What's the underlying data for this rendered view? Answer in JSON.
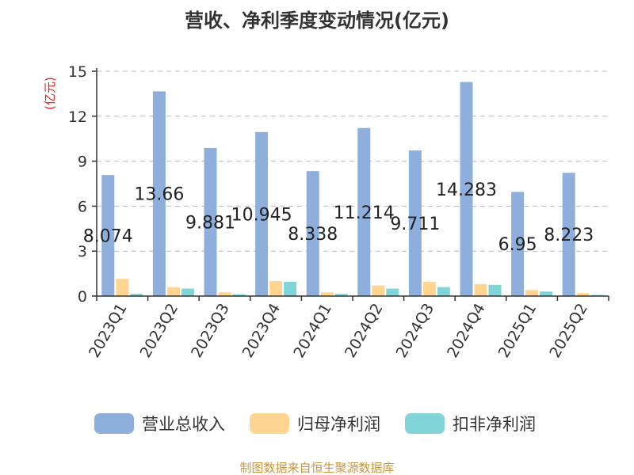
{
  "chart_data": {
    "type": "bar",
    "title": "营收、净利季度变动情况(亿元)",
    "ylabel": "(亿元)",
    "ylim": [
      0,
      15
    ],
    "yticks": [
      0,
      3,
      6,
      9,
      12,
      15
    ],
    "grid": true,
    "legend_position": "bottom",
    "categories": [
      "2023Q1",
      "2023Q2",
      "2023Q3",
      "2023Q4",
      "2024Q1",
      "2024Q2",
      "2024Q3",
      "2024Q4",
      "2025Q1",
      "2025Q2"
    ],
    "series": [
      {
        "name": "营业总收入",
        "color": "#8EAEDB",
        "show_labels": true,
        "values": [
          8.074,
          13.66,
          9.881,
          10.945,
          8.338,
          11.214,
          9.711,
          14.283,
          6.95,
          8.223
        ]
      },
      {
        "name": "归母净利润",
        "color": "#FFD591",
        "show_labels": false,
        "values": [
          1.15,
          0.6,
          0.25,
          1.0,
          0.25,
          0.7,
          0.95,
          0.8,
          0.4,
          0.2
        ]
      },
      {
        "name": "扣非净利润",
        "color": "#82D5D6",
        "show_labels": false,
        "values": [
          0.15,
          0.5,
          0.12,
          0.95,
          0.15,
          0.5,
          0.6,
          0.75,
          0.3,
          0.08
        ]
      }
    ],
    "data_labels": [
      "8.074",
      "13.66",
      "9.881",
      "10.945",
      "8.338",
      "11.214",
      "9.711",
      "14.283",
      "6.95",
      "8.223"
    ],
    "source": "制图数据来自恒生聚源数据库",
    "colors": {
      "unit": "#E02020",
      "source": "#C8963E",
      "axis": "#333333",
      "grid": "#BBBBBB"
    }
  }
}
